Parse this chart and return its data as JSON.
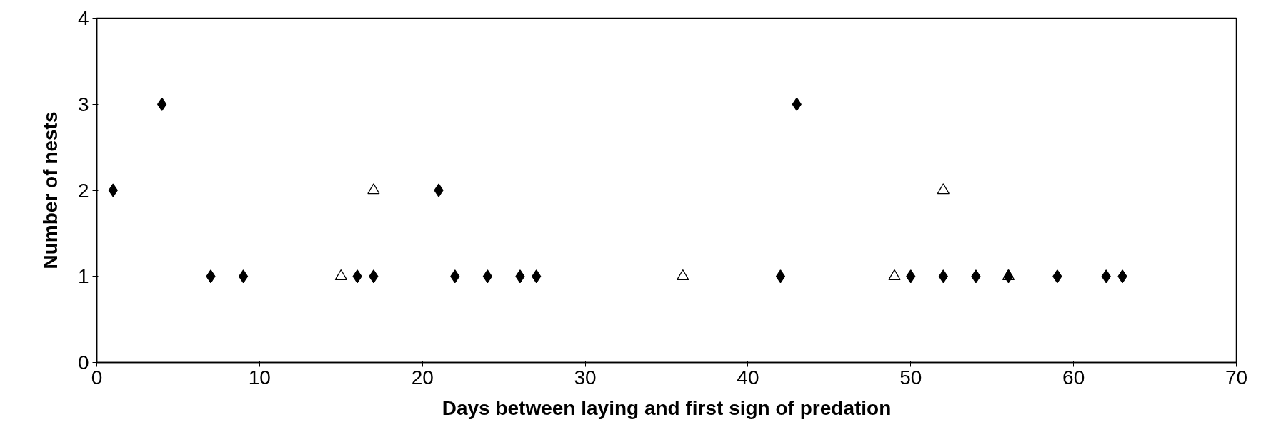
{
  "chart_data": {
    "type": "scatter",
    "xlabel": "Days between laying and first sign of predation",
    "ylabel": "Number of nests",
    "xlim": [
      0,
      70
    ],
    "ylim": [
      0,
      4
    ],
    "xticks": [
      0,
      10,
      20,
      30,
      40,
      50,
      60,
      70
    ],
    "yticks": [
      0,
      1,
      2,
      3,
      4
    ],
    "grid": false,
    "series": [
      {
        "color": "#000000",
        "marker": "diamond",
        "x": [
          1,
          4,
          7,
          9,
          16,
          17,
          21,
          22,
          24,
          26,
          27,
          42,
          43,
          50,
          52,
          54,
          56,
          59,
          62,
          63
        ],
        "values": [
          2,
          3,
          1,
          1,
          1,
          1,
          2,
          1,
          1,
          1,
          1,
          1,
          3,
          1,
          1,
          1,
          1,
          1,
          1,
          1
        ]
      },
      {
        "color": "#000000",
        "marker": "triangle",
        "x": [
          15,
          17,
          36,
          49,
          52,
          56
        ],
        "values": [
          1,
          2,
          1,
          1,
          2,
          1
        ]
      }
    ]
  }
}
